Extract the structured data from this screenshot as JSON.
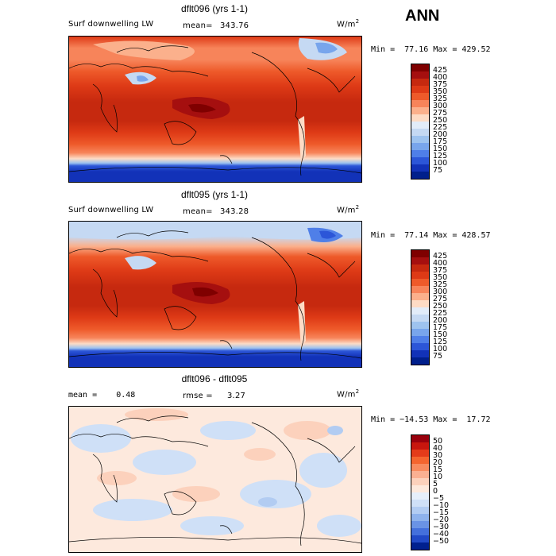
{
  "season": "ANN",
  "panels": [
    {
      "title": "dflt096 (yrs 1-1)",
      "left_label": "Surf downwelling LW",
      "stat_label": "mean=",
      "stat_value": "343.76",
      "units": "W/m",
      "units_exp": "2",
      "min_max": "Min =  77.16 Max = 429.52",
      "colorbar_labels": [
        "425",
        "400",
        "375",
        "350",
        "325",
        "300",
        "275",
        "250",
        "225",
        "200",
        "175",
        "150",
        "125",
        "100",
        "75"
      ]
    },
    {
      "title": "dflt095 (yrs 1-1)",
      "left_label": "Surf downwelling LW",
      "stat_label": "mean=",
      "stat_value": "343.28",
      "units": "W/m",
      "units_exp": "2",
      "min_max": "Min =  77.14 Max = 428.57",
      "colorbar_labels": [
        "425",
        "400",
        "375",
        "350",
        "325",
        "300",
        "275",
        "250",
        "225",
        "200",
        "175",
        "150",
        "125",
        "100",
        "75"
      ]
    },
    {
      "title": "dflt096 - dflt095",
      "left_label": "mean =    0.48",
      "stat_label": "rmse =",
      "stat_value": "3.27",
      "units": "W/m",
      "units_exp": "2",
      "min_max": "Min = −14.53 Max =  17.72",
      "colorbar_labels": [
        "50",
        "40",
        "30",
        "20",
        "15",
        "10",
        "5",
        "0",
        "−5",
        "−10",
        "−15",
        "−20",
        "−30",
        "−40",
        "−50"
      ]
    }
  ],
  "colors": {
    "abs_scale": [
      "#7f0000",
      "#a50f0f",
      "#c6290f",
      "#de3a16",
      "#ee5a2a",
      "#f7845a",
      "#fbb08c",
      "#fddbc5",
      "#e2ecf9",
      "#c5d9f3",
      "#9ec3ef",
      "#78a5ec",
      "#4f7fe8",
      "#2c56d8",
      "#1232b8",
      "#001f8c"
    ],
    "diff_scale": [
      "#99000d",
      "#c8160e",
      "#e33b1a",
      "#f4652f",
      "#f88b5f",
      "#fab092",
      "#fcd1bc",
      "#fde9dd",
      "#e6effb",
      "#cfe0f7",
      "#b2ccf2",
      "#8eb2ec",
      "#6a93e5",
      "#4470dc",
      "#2149c7",
      "#00208f"
    ]
  }
}
